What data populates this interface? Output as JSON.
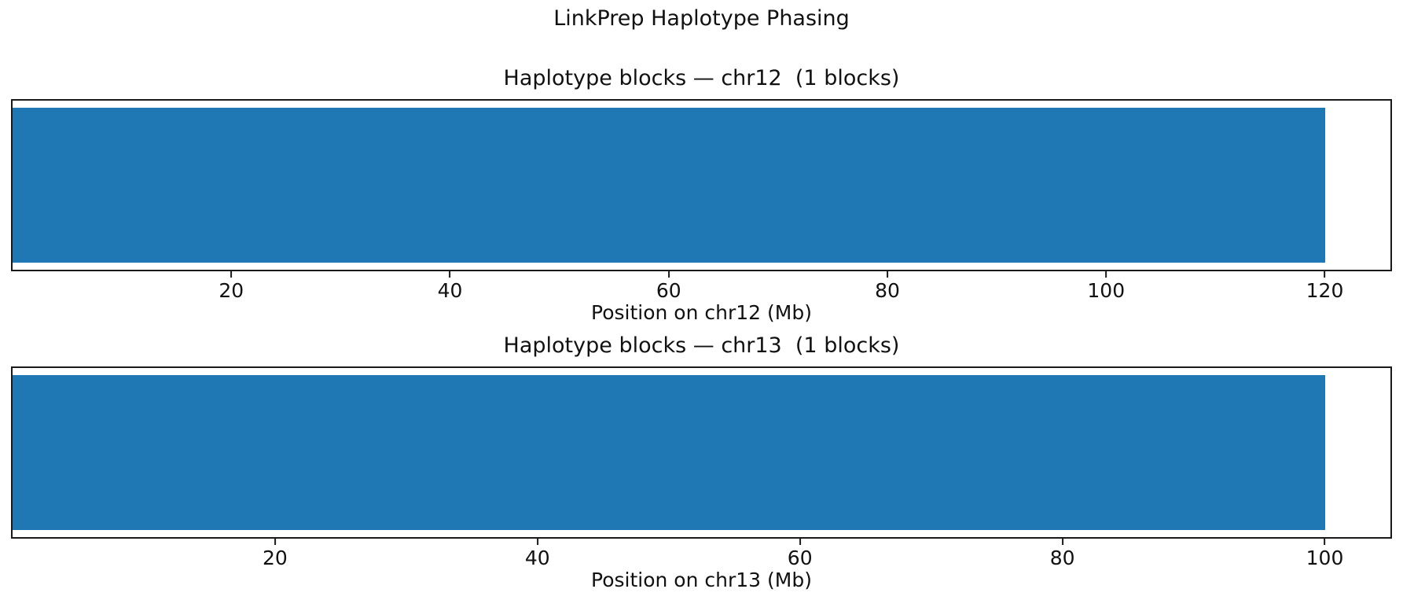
{
  "figure": {
    "suptitle": "LinkPrep Haplotype Phasing",
    "background": "#ffffff",
    "colors": {
      "bar": "#1f77b4",
      "spine": "#1a1a1a",
      "text": "#111111"
    }
  },
  "chart_data": [
    {
      "type": "bar",
      "orientation": "horizontal",
      "title": "Haplotype blocks — chr12  (1 blocks)",
      "xlabel": "Position on chr12 (Mb)",
      "chromosome": "chr12",
      "block_count": 1,
      "blocks": [
        {
          "start_mb": 0,
          "end_mb": 120
        }
      ],
      "xlim": [
        0,
        126
      ],
      "xticks": [
        20,
        40,
        60,
        80,
        100,
        120
      ],
      "yticks": [],
      "bar_color": "#1f77b4",
      "grid": false,
      "legend": "none"
    },
    {
      "type": "bar",
      "orientation": "horizontal",
      "title": "Haplotype blocks — chr13  (1 blocks)",
      "xlabel": "Position on chr13 (Mb)",
      "chromosome": "chr13",
      "block_count": 1,
      "blocks": [
        {
          "start_mb": 0,
          "end_mb": 100
        }
      ],
      "xlim": [
        0,
        105
      ],
      "xticks": [
        20,
        40,
        60,
        80,
        100
      ],
      "yticks": [],
      "bar_color": "#1f77b4",
      "grid": false,
      "legend": "none"
    }
  ]
}
